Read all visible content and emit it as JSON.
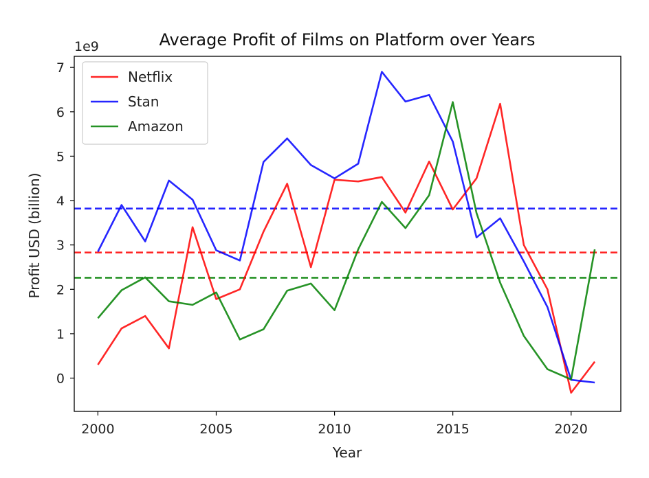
{
  "chart_data": {
    "type": "line",
    "title": "Average Profit of Films on Platform over Years",
    "xlabel": "Year",
    "ylabel": "Profit USD (billion)",
    "offset_text": "1e9",
    "xlim": [
      1999,
      2022.1
    ],
    "ylim": [
      -0.75,
      7.25
    ],
    "xticks": [
      2000,
      2005,
      2010,
      2015,
      2020
    ],
    "yticks": [
      0,
      1,
      2,
      3,
      4,
      5,
      6,
      7
    ],
    "grid": false,
    "legend_position": "top-left",
    "x": [
      2000,
      2001,
      2002,
      2003,
      2004,
      2005,
      2006,
      2007,
      2008,
      2009,
      2010,
      2011,
      2012,
      2013,
      2014,
      2015,
      2016,
      2017,
      2018,
      2019,
      2020,
      2021
    ],
    "series": [
      {
        "name": "Netflix",
        "color": "#ff0000",
        "values": [
          0.3,
          1.12,
          1.4,
          0.67,
          3.4,
          1.78,
          2.0,
          3.3,
          4.38,
          2.5,
          4.47,
          4.43,
          4.53,
          3.73,
          4.88,
          3.8,
          4.5,
          6.18,
          3.0,
          2.0,
          -0.33,
          0.37
        ]
      },
      {
        "name": "Stan",
        "color": "#0000ff",
        "values": [
          2.85,
          3.9,
          3.08,
          4.45,
          4.02,
          2.88,
          2.65,
          4.87,
          5.4,
          4.8,
          4.5,
          4.83,
          6.9,
          6.23,
          6.38,
          5.33,
          3.17,
          3.6,
          2.63,
          1.6,
          -0.04,
          -0.1
        ]
      },
      {
        "name": "Amazon",
        "color": "#008000",
        "values": [
          1.35,
          1.98,
          2.27,
          1.73,
          1.65,
          1.93,
          0.87,
          1.1,
          1.97,
          2.13,
          1.53,
          2.9,
          3.97,
          3.38,
          4.12,
          6.22,
          3.72,
          2.15,
          0.95,
          0.2,
          -0.03,
          2.9
        ]
      }
    ],
    "hlines": [
      {
        "series": "Stan",
        "color": "#0000ff",
        "value": 3.82
      },
      {
        "series": "Netflix",
        "color": "#ff0000",
        "value": 2.83
      },
      {
        "series": "Amazon",
        "color": "#008000",
        "value": 2.26
      }
    ]
  }
}
